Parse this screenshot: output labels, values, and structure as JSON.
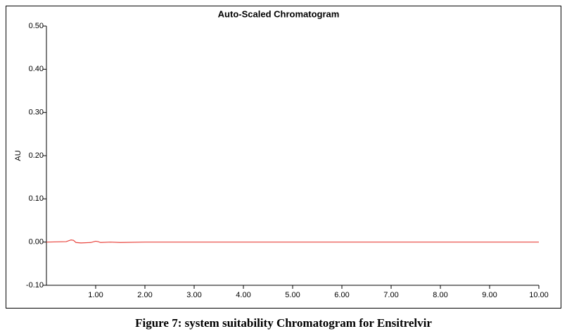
{
  "chart_data": {
    "type": "line",
    "title": "Auto-Scaled Chromatogram",
    "y_label": "AU",
    "caption": "Figure 7: system suitability Chromatogram for Ensitrelvir",
    "x": [
      0,
      0.4,
      0.5,
      0.55,
      0.6,
      0.7,
      0.9,
      1.0,
      1.05,
      1.1,
      1.3,
      1.5,
      2.0,
      10.0
    ],
    "series": [
      {
        "name": "Ensitrelvir",
        "color": "#e8413a",
        "values": [
          0,
          0.001,
          0.005,
          0.004,
          -0.001,
          -0.002,
          -0.001,
          0.002,
          0.001,
          -0.001,
          0,
          -0.001,
          0,
          0
        ]
      }
    ],
    "xlim": [
      0,
      10
    ],
    "xticks": [
      {
        "value": 1,
        "label": "1.00"
      },
      {
        "value": 2,
        "label": "2.00"
      },
      {
        "value": 3,
        "label": "3.00"
      },
      {
        "value": 4,
        "label": "4.00"
      },
      {
        "value": 5,
        "label": "5.00"
      },
      {
        "value": 6,
        "label": "6.00"
      },
      {
        "value": 7,
        "label": "7.00"
      },
      {
        "value": 8,
        "label": "8.00"
      },
      {
        "value": 9,
        "label": "9.00"
      },
      {
        "value": 10,
        "label": "10.00"
      }
    ],
    "ylim": [
      -0.1,
      0.5
    ],
    "yticks": [
      {
        "value": -0.1,
        "label": "-0.10"
      },
      {
        "value": 0,
        "label": "0.00"
      },
      {
        "value": 0.1,
        "label": "0.10"
      },
      {
        "value": 0.2,
        "label": "0.20"
      },
      {
        "value": 0.3,
        "label": "0.30"
      },
      {
        "value": 0.4,
        "label": "0.40"
      },
      {
        "value": 0.5,
        "label": "0.50"
      }
    ],
    "grid": false
  }
}
